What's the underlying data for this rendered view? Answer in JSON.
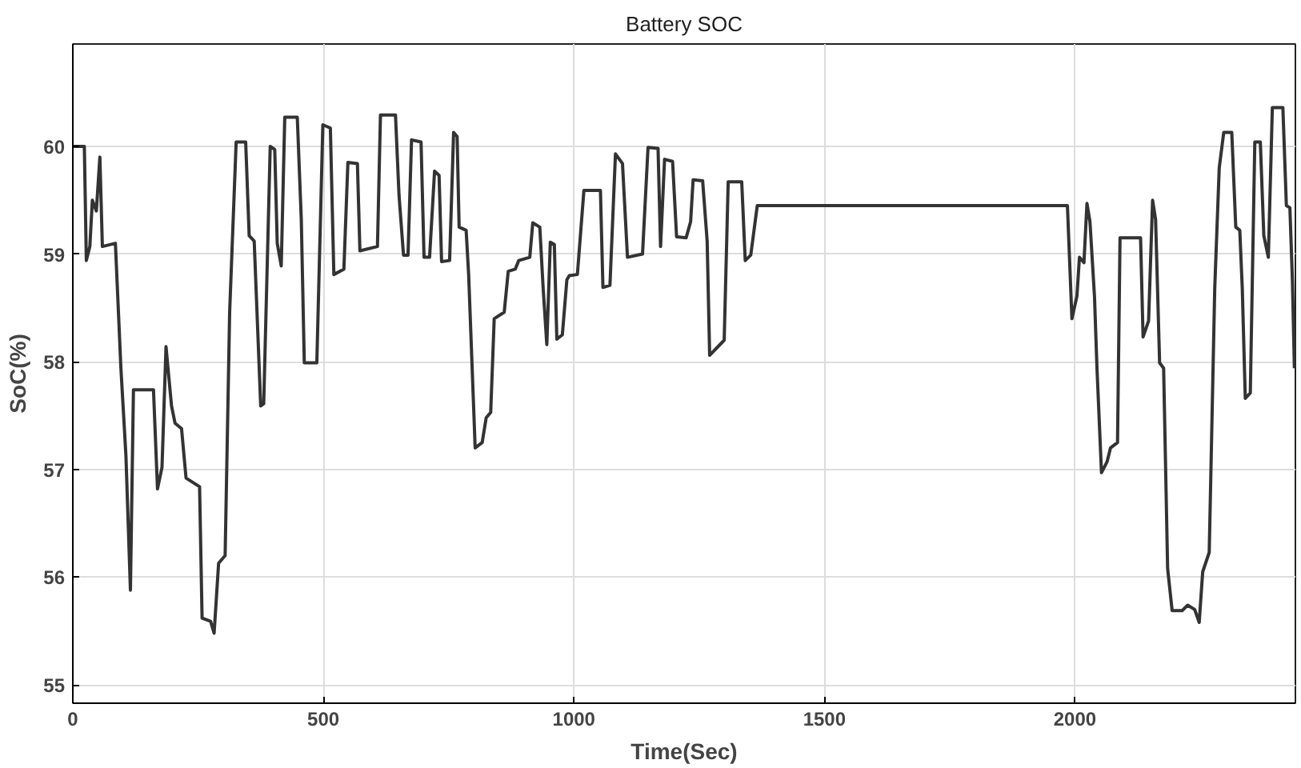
{
  "chart_data": {
    "type": "line",
    "title": "Battery SOC",
    "xlabel": "Time(Sec)",
    "ylabel": "SoC(%)",
    "xlim": [
      0,
      2440
    ],
    "xticks": [
      0,
      500,
      1000,
      1500,
      2000
    ],
    "ylim": [
      54.83,
      60.95
    ],
    "yticks": [
      55,
      56,
      57,
      58,
      59,
      60
    ],
    "grid": true,
    "series": [
      {
        "color": "#333333",
        "x": [
          0,
          23,
          27,
          34,
          39,
          47,
          54,
          59,
          85,
          96,
          106,
          115,
          121,
          161,
          169,
          178,
          186,
          197,
          204,
          217,
          226,
          253,
          258,
          275,
          282,
          291,
          304,
          313,
          326,
          345,
          352,
          362,
          375,
          381,
          394,
          403,
          408,
          416,
          423,
          448,
          456,
          462,
          487,
          499,
          514,
          521,
          541,
          549,
          568,
          573,
          608,
          614,
          644,
          651,
          660,
          669,
          676,
          695,
          701,
          712,
          722,
          731,
          736,
          752,
          760,
          767,
          771,
          785,
          790,
          803,
          817,
          825,
          834,
          841,
          861,
          869,
          883,
          890,
          912,
          918,
          932,
          939,
          946,
          953,
          961,
          966,
          977,
          986,
          991,
          1007,
          1020,
          1053,
          1058,
          1072,
          1083,
          1097,
          1107,
          1137,
          1148,
          1168,
          1173,
          1181,
          1197,
          1205,
          1224,
          1233,
          1238,
          1257,
          1266,
          1271,
          1300,
          1308,
          1335,
          1342,
          1353,
          1366,
          1985,
          1994,
          2004,
          2009,
          2018,
          2024,
          2030,
          2039,
          2044,
          2053,
          2064,
          2071,
          2085,
          2090,
          2131,
          2136,
          2147,
          2155,
          2161,
          2169,
          2177,
          2185,
          2194,
          2214,
          2225,
          2239,
          2248,
          2255,
          2268,
          2279,
          2288,
          2297,
          2313,
          2321,
          2329,
          2334,
          2340,
          2350,
          2359,
          2370,
          2377,
          2386,
          2394,
          2415,
          2422,
          2429,
          2434,
          2438
        ],
        "values": [
          60.0,
          60.0,
          58.94,
          59.07,
          59.5,
          59.4,
          59.9,
          59.07,
          59.1,
          57.94,
          57.13,
          55.88,
          57.74,
          57.74,
          56.82,
          57.02,
          58.14,
          57.59,
          57.43,
          57.38,
          56.92,
          56.84,
          55.62,
          55.59,
          55.48,
          56.13,
          56.2,
          58.46,
          60.04,
          60.04,
          59.17,
          59.12,
          57.59,
          57.61,
          60.0,
          59.97,
          59.1,
          58.89,
          60.27,
          60.27,
          59.32,
          57.99,
          57.99,
          60.2,
          60.17,
          58.81,
          58.86,
          59.85,
          59.84,
          59.03,
          59.07,
          60.29,
          60.29,
          59.55,
          58.99,
          58.99,
          60.06,
          60.04,
          58.97,
          58.97,
          59.77,
          59.73,
          58.93,
          58.94,
          60.13,
          60.09,
          59.25,
          59.22,
          58.81,
          57.2,
          57.25,
          57.48,
          57.53,
          58.4,
          58.46,
          58.84,
          58.86,
          58.94,
          58.97,
          59.29,
          59.25,
          58.66,
          58.16,
          59.11,
          59.09,
          58.21,
          58.25,
          58.76,
          58.8,
          58.81,
          59.59,
          59.59,
          58.69,
          58.71,
          59.93,
          59.84,
          58.97,
          59.0,
          59.99,
          59.98,
          59.07,
          59.88,
          59.86,
          59.16,
          59.15,
          59.3,
          59.69,
          59.68,
          59.12,
          58.06,
          58.2,
          59.67,
          59.67,
          58.94,
          58.99,
          59.45,
          59.45,
          58.4,
          58.61,
          58.97,
          58.92,
          59.47,
          59.3,
          58.61,
          57.94,
          56.97,
          57.07,
          57.2,
          57.25,
          59.15,
          59.15,
          58.23,
          58.38,
          59.5,
          59.32,
          57.99,
          57.94,
          56.08,
          55.69,
          55.69,
          55.74,
          55.7,
          55.58,
          56.05,
          56.23,
          58.68,
          59.8,
          60.13,
          60.13,
          59.25,
          59.22,
          58.68,
          57.66,
          57.71,
          60.04,
          60.04,
          59.17,
          58.97,
          60.36,
          60.36,
          59.45,
          59.43,
          58.76,
          57.94
        ]
      }
    ]
  }
}
